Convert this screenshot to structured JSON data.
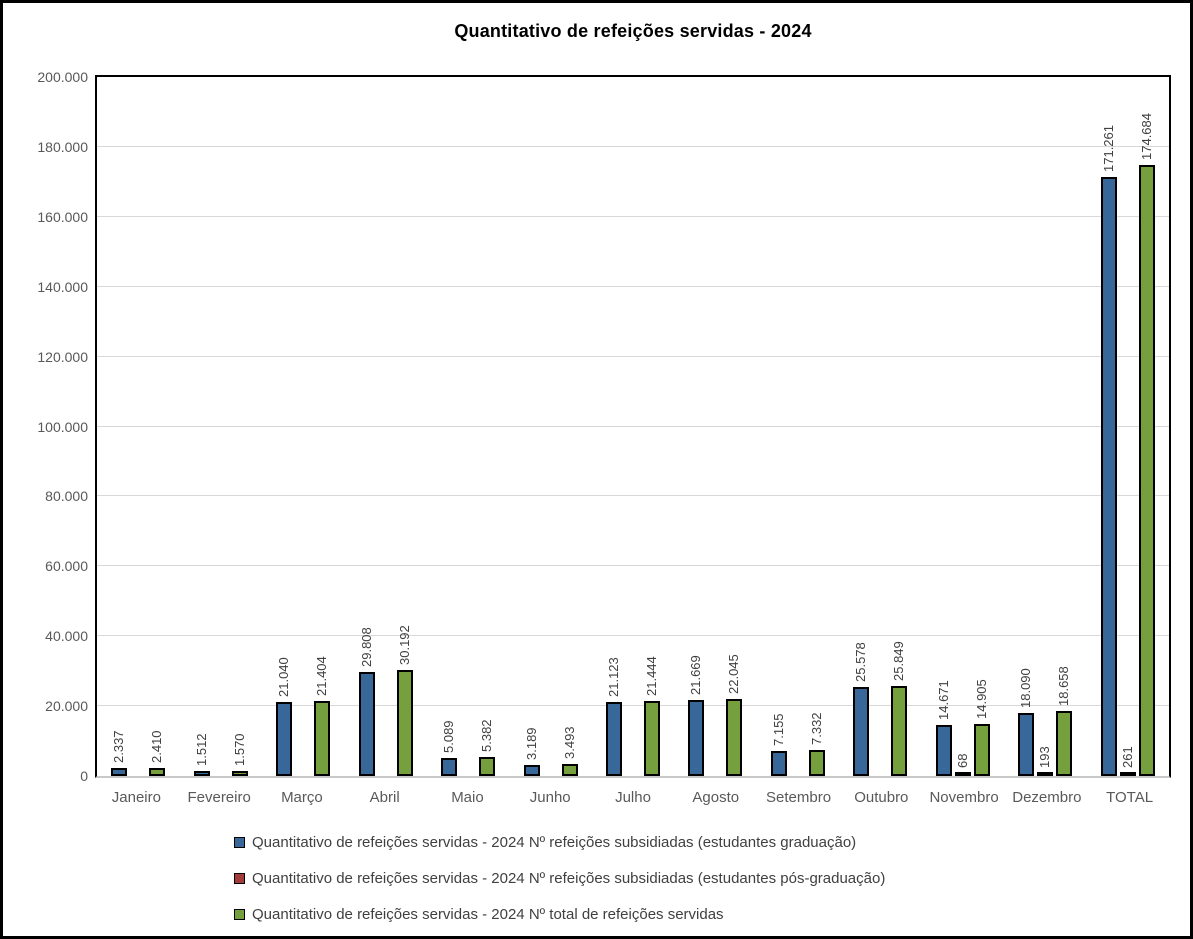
{
  "title": "Quantitativo de refeições servidas - 2024",
  "chart_data": {
    "type": "bar",
    "title": "Quantitativo de refeições servidas - 2024",
    "categories": [
      "Janeiro",
      "Fevereiro",
      "Março",
      "Abril",
      "Maio",
      "Junho",
      "Julho",
      "Agosto",
      "Setembro",
      "Outubro",
      "Novembro",
      "Dezembro",
      "TOTAL"
    ],
    "series": [
      {
        "key": "graduacao",
        "name": "Quantitativo de refeições servidas - 2024 Nº refeições subsidiadas (estudantes graduação)",
        "color": "#38689A",
        "values": [
          2337,
          1512,
          21040,
          29808,
          5089,
          3189,
          21123,
          21669,
          7155,
          25578,
          14671,
          18090,
          171261
        ],
        "labels": [
          "2.337",
          "1.512",
          "21.040",
          "29.808",
          "5.089",
          "3.189",
          "21.123",
          "21.669",
          "7.155",
          "25.578",
          "14.671",
          "18.090",
          "171.261"
        ]
      },
      {
        "key": "pos-graduacao",
        "name": "Quantitativo de refeições servidas - 2024 Nº refeições subsidiadas (estudantes pós-graduação)",
        "color": "#A23B39",
        "values": [
          0,
          0,
          0,
          0,
          0,
          0,
          0,
          0,
          0,
          0,
          68,
          193,
          261
        ],
        "labels": [
          "",
          "",
          "",
          "",
          "",
          "",
          "",
          "",
          "",
          "",
          "68",
          "193",
          "261"
        ]
      },
      {
        "key": "total",
        "name": "Quantitativo de refeições servidas - 2024 Nº total de refeições servidas",
        "color": "#76A03E",
        "values": [
          2410,
          1570,
          21404,
          30192,
          5382,
          3493,
          21444,
          22045,
          7332,
          25849,
          14905,
          18658,
          174684
        ],
        "labels": [
          "2.410",
          "1.570",
          "21.404",
          "30.192",
          "5.382",
          "3.493",
          "21.444",
          "22.045",
          "7.332",
          "25.849",
          "14.905",
          "18.658",
          "174.684"
        ]
      }
    ],
    "ylim": [
      0,
      200000
    ],
    "ytick_step": 20000,
    "ytick_labels": [
      "0",
      "20.000",
      "40.000",
      "60.000",
      "80.000",
      "100.000",
      "120.000",
      "140.000",
      "160.000",
      "180.000",
      "200.000"
    ],
    "grid": true,
    "legend_position": "bottom",
    "colors": {
      "grid": "#D8D8D8",
      "axis_text": "#595959",
      "data_label_text": "#3F3F3F",
      "plot_border": "#000000"
    }
  }
}
